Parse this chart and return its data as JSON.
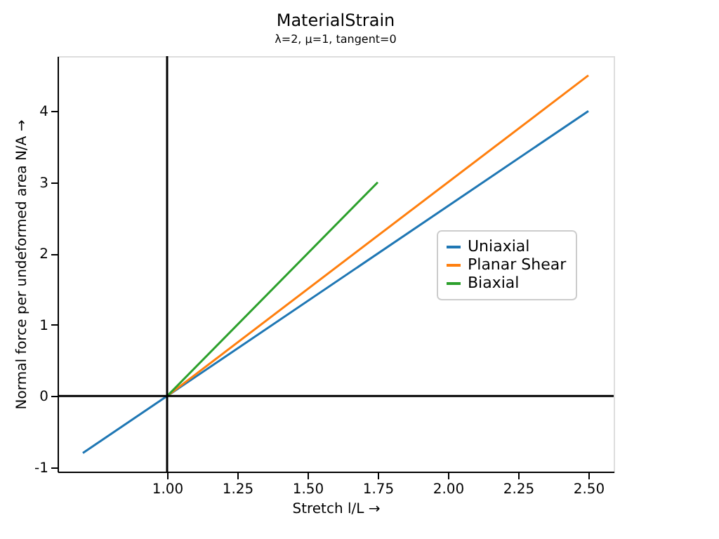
{
  "chart_data": {
    "type": "line",
    "title": "MaterialStrain",
    "subtitle": "λ=2, μ=1, tangent=0",
    "xlabel": "Stretch l/L  →",
    "ylabel": "Normal force per undeformed area N/A  →",
    "series": [
      {
        "name": "Uniaxial",
        "color": "#1f77b4",
        "x": [
          0.7,
          1.0,
          2.5
        ],
        "values": [
          -0.8,
          0,
          4.0
        ]
      },
      {
        "name": "Planar Shear",
        "color": "#ff7f0e",
        "x": [
          1.0,
          2.5
        ],
        "values": [
          0,
          4.5
        ]
      },
      {
        "name": "Biaxial",
        "color": "#2ca02c",
        "x": [
          1.0,
          1.75
        ],
        "values": [
          0,
          3.0
        ]
      }
    ],
    "xlim": [
      0.61,
      2.59
    ],
    "ylim": [
      -1.06,
      4.77
    ],
    "xticks": [
      {
        "value": 1.0,
        "label": "1.00"
      },
      {
        "value": 1.25,
        "label": "1.25"
      },
      {
        "value": 1.5,
        "label": "1.50"
      },
      {
        "value": 1.75,
        "label": "1.75"
      },
      {
        "value": 2.0,
        "label": "2.00"
      },
      {
        "value": 2.25,
        "label": "2.25"
      },
      {
        "value": 2.5,
        "label": "2.50"
      }
    ],
    "yticks": [
      -1,
      0,
      1,
      2,
      3,
      4
    ],
    "ref_lines": [
      {
        "axis": "x",
        "value": 1.0,
        "color": "#000000"
      },
      {
        "axis": "y",
        "value": 0,
        "color": "#000000"
      }
    ],
    "legend": "right",
    "grid": false,
    "marker": "none",
    "line_style": "solid"
  }
}
